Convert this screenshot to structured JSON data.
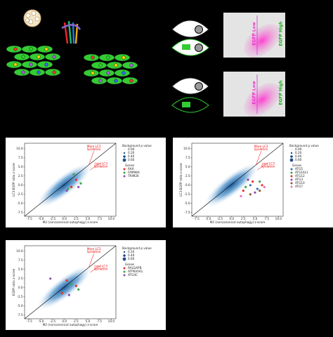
{
  "flow_plots": [
    {
      "low_label": "EGFP Low",
      "high_label": "EGFP High"
    },
    {
      "low_label": "EGFP Low",
      "high_label": "EGFP High"
    }
  ],
  "chart_data": [
    {
      "type": "scatter",
      "xlabel": "M2 (noncanonical autophagy) z-score",
      "ylabel": "LC3-EGFP ratio z-score",
      "annotations": [
        [
          "More LC3",
          "lipidation"
        ],
        [
          "Less LC3",
          "lipidation"
        ]
      ],
      "xlim": [
        -8.5,
        11
      ],
      "ylim": [
        -8.5,
        11.5
      ],
      "xticks": [
        {
          "value": -7.5,
          "label": "-7.5"
        },
        {
          "value": -5,
          "label": "-5.0"
        },
        {
          "value": -2.5,
          "label": "-2.5"
        },
        {
          "value": 0,
          "label": "0.0"
        },
        {
          "value": 2.5,
          "label": "2.5"
        },
        {
          "value": 5,
          "label": "5.0"
        },
        {
          "value": 7.5,
          "label": "7.5"
        },
        {
          "value": 10,
          "label": "10.0"
        }
      ],
      "yticks": [
        {
          "value": -7.5,
          "label": "-7.5"
        },
        {
          "value": -5,
          "label": "-5.0"
        },
        {
          "value": -2.5,
          "label": "-2.5"
        },
        {
          "value": 0,
          "label": "0.0"
        },
        {
          "value": 2.5,
          "label": "2.5"
        },
        {
          "value": 5,
          "label": "5.0"
        },
        {
          "value": 7.5,
          "label": "7.5"
        },
        {
          "value": 10,
          "label": "10.0"
        }
      ],
      "legend_title": "Background p value",
      "size_legend": [
        {
          "value": 0,
          "label": "0.00"
        },
        {
          "value": 0.2,
          "label": "0.20"
        },
        {
          "value": 0.4,
          "label": "0.40"
        },
        {
          "value": 0.6,
          "label": "0.60"
        }
      ],
      "genes_title": "Genes",
      "series": [
        {
          "name": "RAX",
          "color": "#e8322b",
          "x": [
            1.5,
            2.5
          ],
          "y": [
            -0.5,
            1.5
          ]
        },
        {
          "name": "FAM98A",
          "color": "#3aa846",
          "x": [
            0.8,
            3.5,
            2
          ],
          "y": [
            -1,
            0.5,
            3
          ]
        },
        {
          "name": "TRIM26",
          "color": "#8d4fb3",
          "x": [
            0.5,
            3
          ],
          "y": [
            -1.5,
            -0.5
          ]
        }
      ]
    },
    {
      "type": "scatter",
      "xlabel": "M2 (noncanonical autophagy) z-score",
      "ylabel": "LC3-EGFP ratio z-score",
      "annotations": [
        [
          "More LC3",
          "lipidation"
        ],
        [
          "Less LC3",
          "lipidation"
        ]
      ],
      "xlim": [
        -8.5,
        11
      ],
      "ylim": [
        -8.5,
        11.5
      ],
      "xticks": [
        {
          "value": -7.5,
          "label": "-7.5"
        },
        {
          "value": -5,
          "label": "-5.0"
        },
        {
          "value": -2.5,
          "label": "-2.5"
        },
        {
          "value": 0,
          "label": "0.0"
        },
        {
          "value": 2.5,
          "label": "2.5"
        },
        {
          "value": 5,
          "label": "5.0"
        },
        {
          "value": 7.5,
          "label": "7.5"
        },
        {
          "value": 10,
          "label": "10.0"
        }
      ],
      "yticks": [
        {
          "value": -7.5,
          "label": "-7.5"
        },
        {
          "value": -5,
          "label": "-5.0"
        },
        {
          "value": -2.5,
          "label": "-2.5"
        },
        {
          "value": 0,
          "label": "0.0"
        },
        {
          "value": 2.5,
          "label": "2.5"
        },
        {
          "value": 5,
          "label": "5.0"
        },
        {
          "value": 7.5,
          "label": "7.5"
        },
        {
          "value": 10,
          "label": "10.0"
        }
      ],
      "legend_title": "Background p value",
      "size_legend": [
        {
          "value": 0,
          "label": "0.00"
        },
        {
          "value": 0.2,
          "label": "0.20"
        },
        {
          "value": 0.4,
          "label": "0.40"
        },
        {
          "value": 0.6,
          "label": "0.60"
        }
      ],
      "genes_title": "Genes",
      "series": [
        {
          "name": "ATG5",
          "color": "#2f6fc0",
          "x": [
            4,
            5.5
          ],
          "y": [
            0,
            -1
          ]
        },
        {
          "name": "ATG16L1",
          "color": "#3aa846",
          "x": [
            3,
            6
          ],
          "y": [
            -0.5,
            1
          ]
        },
        {
          "name": "ATG12",
          "color": "#e8322b",
          "x": [
            4.5,
            6.5,
            2.5
          ],
          "y": [
            1,
            0,
            -1.5
          ]
        },
        {
          "name": "ATG3",
          "color": "#8d4fb3",
          "x": [
            5,
            3.5
          ],
          "y": [
            -2,
            1.5
          ]
        },
        {
          "name": "ATG10",
          "color": "#8b5a2b",
          "x": [
            6,
            4
          ],
          "y": [
            -1.5,
            -2.5
          ]
        },
        {
          "name": "ATG7",
          "color": "#e377c2",
          "x": [
            2,
            7
          ],
          "y": [
            -3,
            -0.5
          ]
        }
      ]
    },
    {
      "type": "scatter",
      "xlabel": "M2 (noncanonical autophagy) z-score",
      "ylabel": "EGFP ratio z-score",
      "annotations": [
        [
          "More LC3",
          "lipidation"
        ],
        [
          "Less LC3",
          "lipidation"
        ]
      ],
      "xlim": [
        -8.5,
        11
      ],
      "ylim": [
        -8.5,
        11.5
      ],
      "xticks": [
        {
          "value": -7.5,
          "label": "-7.5"
        },
        {
          "value": -5,
          "label": "-5.0"
        },
        {
          "value": -2.5,
          "label": "-2.5"
        },
        {
          "value": 0,
          "label": "0.0"
        },
        {
          "value": 2.5,
          "label": "2.5"
        },
        {
          "value": 5,
          "label": "5.0"
        },
        {
          "value": 7.5,
          "label": "7.5"
        },
        {
          "value": 10,
          "label": "10.0"
        }
      ],
      "yticks": [
        {
          "value": -7.5,
          "label": "-7.5"
        },
        {
          "value": -5,
          "label": "-5.0"
        },
        {
          "value": -2.5,
          "label": "-2.5"
        },
        {
          "value": 0,
          "label": "0.0"
        },
        {
          "value": 2.5,
          "label": "2.5"
        },
        {
          "value": 5,
          "label": "5.0"
        },
        {
          "value": 7.5,
          "label": "7.5"
        },
        {
          "value": 10,
          "label": "10.0"
        }
      ],
      "legend_title": "Background p value",
      "size_legend": [
        {
          "value": 0.2,
          "label": "0.20"
        },
        {
          "value": 0.4,
          "label": "0.40"
        },
        {
          "value": 0.6,
          "label": "0.60"
        }
      ],
      "genes_title": "Genes",
      "series": [
        {
          "name": "RALGAPB",
          "color": "#e8322b",
          "x": [
            0.5,
            2.5,
            -0.5
          ],
          "y": [
            2,
            0.5,
            -1.5
          ]
        },
        {
          "name": "ATP6V0A1",
          "color": "#3aa846",
          "x": [
            1.5,
            3
          ],
          "y": [
            1,
            -0.5
          ]
        },
        {
          "name": "ATG4C",
          "color": "#8d4fb3",
          "x": [
            -3,
            1
          ],
          "y": [
            2.5,
            -2
          ]
        }
      ]
    }
  ]
}
